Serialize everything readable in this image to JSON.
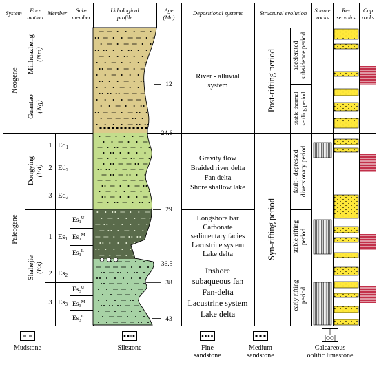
{
  "headers": {
    "system": "System",
    "formation": [
      "For-",
      "mation"
    ],
    "member": "Member",
    "submember": [
      "Sub-",
      "member"
    ],
    "profile": [
      "Lithological",
      "profile"
    ],
    "age": [
      "Age",
      "(Ma)"
    ],
    "depositional": "Depositional systems",
    "structural": "Structural evolution",
    "source": [
      "Source",
      "rocks"
    ],
    "reservoirs": [
      "Re-",
      "servoirs"
    ],
    "cap": [
      "Cap",
      "rocks"
    ]
  },
  "systems": {
    "neogene": "Neogene",
    "paleogene": "Paleogene"
  },
  "formations": {
    "minhuazheng": [
      "Minhuazheng",
      "(Nm)"
    ],
    "guantao": [
      "Guantao",
      "(Ng)"
    ],
    "dongying": [
      "Dongying",
      "(Ed)"
    ],
    "shahejie": [
      "Shahejie",
      "(Es)"
    ]
  },
  "members": {
    "ed": [
      {
        "num": "1",
        "code": "Ed",
        "sub": "1"
      },
      {
        "num": "2",
        "code": "Ed",
        "sub": "2"
      },
      {
        "num": "3",
        "code": "Ed",
        "sub": "3"
      }
    ],
    "es": [
      {
        "num": "1",
        "code": "Es",
        "sub": "1"
      },
      {
        "num": "2",
        "code": "Es",
        "sub": "2"
      },
      {
        "num": "3",
        "code": "Es",
        "sub": "3"
      }
    ]
  },
  "submembers": {
    "es1": [
      {
        "code": "Es",
        "sub": "1",
        "sup": "U"
      },
      {
        "code": "Es",
        "sub": "1",
        "sup": "M"
      },
      {
        "code": "Es",
        "sub": "1",
        "sup": "L"
      }
    ],
    "es3": [
      {
        "code": "Es",
        "sub": "3",
        "sup": "U"
      },
      {
        "code": "Es",
        "sub": "3",
        "sup": "M"
      },
      {
        "code": "Es",
        "sub": "3",
        "sup": "L"
      }
    ]
  },
  "ages": {
    "a12": "12",
    "a246": "24.6",
    "a29": "29",
    "a365": "36.5",
    "a38": "38",
    "a43": "43"
  },
  "depositional": {
    "neogene": [
      "River - alluvial",
      "system"
    ],
    "dongying": [
      "Gravity flow",
      "Braided river delta",
      "Fan delta",
      "Shore shallow lake"
    ],
    "es1": [
      "Longshore bar",
      "Carbonate",
      "sedimentary facies",
      "Lacustrine system",
      "Lake delta"
    ],
    "es3": [
      "Inshore",
      "subaqueous fan",
      "Fan-delta",
      "Lacustrine system",
      "Lake delta"
    ]
  },
  "structural": {
    "post": "Post-rifting period",
    "syn": "Syn-rifting period",
    "accelerated": [
      "accelerated",
      "subsidence period"
    ],
    "thermal": [
      "Stable thermal",
      "settling period"
    ],
    "fault": [
      "fault - depressed",
      "diversionary period"
    ],
    "stable": [
      "stable rifting",
      "period"
    ],
    "early": [
      "early rifting",
      "period"
    ]
  },
  "legend": {
    "mudstone": "Mudstone",
    "siltstone": "Siltstone",
    "fine": [
      "Fine",
      "sandstone"
    ],
    "medium": [
      "Medium",
      "sandstone"
    ],
    "calcareous": [
      "Calcareous",
      "oolitic limestone"
    ]
  },
  "colors": {
    "neogene_fill": "#dccb8c",
    "dongying_fill": "#c3dd8c",
    "es1_fill": "#5a6b4b",
    "es_lower_fill": "#a7d2a5",
    "reservoir_fill": "#ffe83a",
    "cap_fill": "#c2304a"
  }
}
